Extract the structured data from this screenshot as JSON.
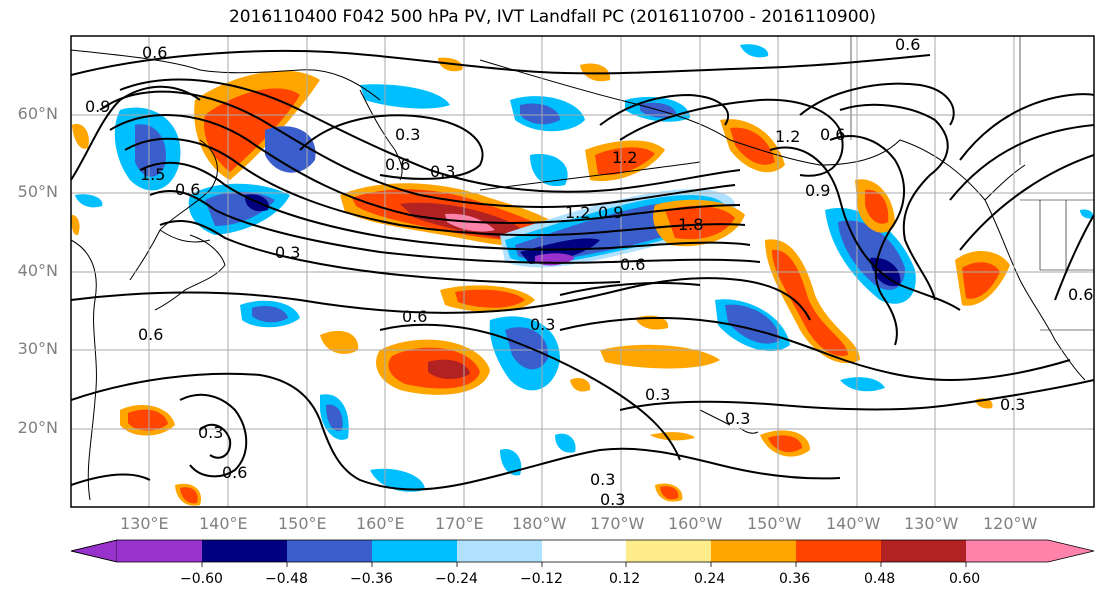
{
  "title": "2016110400 F042 500 hPa PV, IVT Landfall PC (2016110700 - 2016110900)",
  "latitude_labels": [
    "60°N",
    "50°N",
    "40°N",
    "30°N",
    "20°N"
  ],
  "longitude_labels": [
    "130°E",
    "140°E",
    "150°E",
    "160°E",
    "170°E",
    "180°W",
    "170°W",
    "160°W",
    "150°W",
    "140°W",
    "130°W",
    "120°W"
  ],
  "colorbar": {
    "tick_labels": [
      "−0.60",
      "−0.48",
      "−0.36",
      "−0.24",
      "−0.12",
      "0.12",
      "0.24",
      "0.36",
      "0.48",
      "0.60"
    ],
    "colors": [
      "#9932cc",
      "#000080",
      "#3a5fcd",
      "#00bfff",
      "#b0e2ff",
      "#ffffff",
      "#ffec8b",
      "#ffa500",
      "#ff4500",
      "#b22222",
      "#ff82ab"
    ],
    "extend": "both"
  },
  "contour_labels": [
    "0.6",
    "0.6",
    "0.9",
    "0.9",
    "0.6",
    "0.3",
    "1.2",
    "1.2",
    "0.6",
    "0.9",
    "1.2",
    "1.8",
    "0.6",
    "0.3",
    "0.3",
    "0.6",
    "0.3",
    "0.3",
    "0.3",
    "0.3",
    "0.3",
    "0.3",
    "0.6",
    "0.6",
    "0.6",
    "1.5",
    "0.3",
    "0.6"
  ],
  "colors": {
    "gridline": "#aaaaaa",
    "contour": "#000000",
    "coastline": "#000000",
    "axis_label": "#808080"
  }
}
